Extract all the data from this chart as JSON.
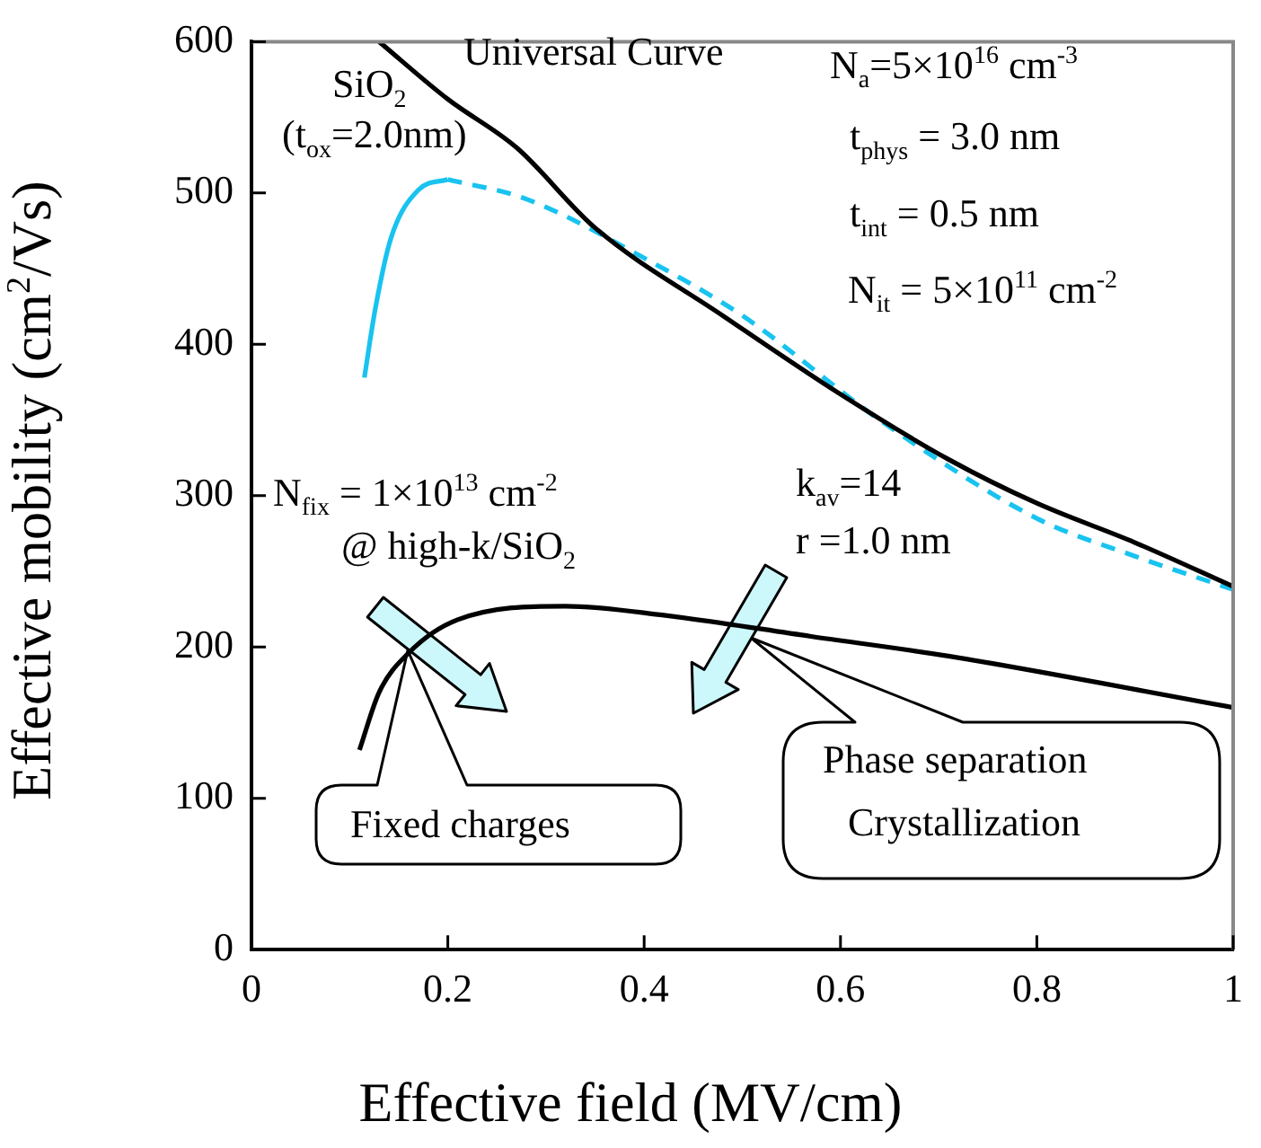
{
  "chart_data": {
    "type": "line",
    "xlabel": "Effective field (MV/cm)",
    "ylabel": "Effective mobility (cm$^{2}$/Vs)",
    "xlim": [
      0,
      1
    ],
    "xticks": [
      0,
      0.2,
      0.4,
      0.6,
      0.8,
      1
    ],
    "ylim": [
      0,
      600
    ],
    "yticks": [
      0,
      100,
      200,
      300,
      400,
      500,
      600
    ],
    "grid": false,
    "legend": false,
    "marker": "none",
    "series": [
      {
        "color": "#000000",
        "line_style": "solid",
        "x": [
          0.13,
          0.2,
          0.27,
          0.35,
          0.48,
          0.6,
          0.71,
          0.8,
          0.9,
          1.0
        ],
        "values": [
          600,
          562,
          530,
          477,
          419,
          367,
          324,
          295,
          269,
          240
        ]
      },
      {
        "color": "#19c3f0",
        "line_style": "solid",
        "x": [
          0.115,
          0.126,
          0.142,
          0.17,
          0.2
        ],
        "values": [
          378,
          423,
          470,
          502,
          509
        ]
      },
      {
        "color": "#19c3f0",
        "line_style": "dashed",
        "x": [
          0.2,
          0.28,
          0.4,
          0.5,
          0.64,
          0.8,
          0.9,
          1.0
        ],
        "values": [
          509,
          496,
          457,
          419,
          350,
          285,
          260,
          238
        ]
      },
      {
        "color": "#000000",
        "line_style": "solid",
        "x": [
          0.11,
          0.13,
          0.16,
          0.21,
          0.32,
          0.42,
          0.57,
          0.71,
          1.0
        ],
        "values": [
          132,
          170,
          196,
          218,
          227,
          221,
          207,
          194,
          160
        ]
      }
    ],
    "annotations": [
      "Universal Curve",
      "SiO$_{2}$",
      "(t$_{ox}$=2.0nm)",
      "N$_{a}$=5×10$^{16}$ cm$^{-3}$",
      "t$_{phys}$ = 3.0 nm",
      "t$_{int}$ = 0.5 nm",
      "N$_{it}$ = 5×10$^{11}$ cm$^{-2}$",
      "N$_{fix}$ = 1×10$^{13}$ cm$^{-2}$",
      "@ high-k/SiO$_{2}$",
      "k$_{av}$=14",
      "r =1.0 nm",
      "Fixed charges",
      "Phase separation",
      "Crystallization"
    ]
  }
}
